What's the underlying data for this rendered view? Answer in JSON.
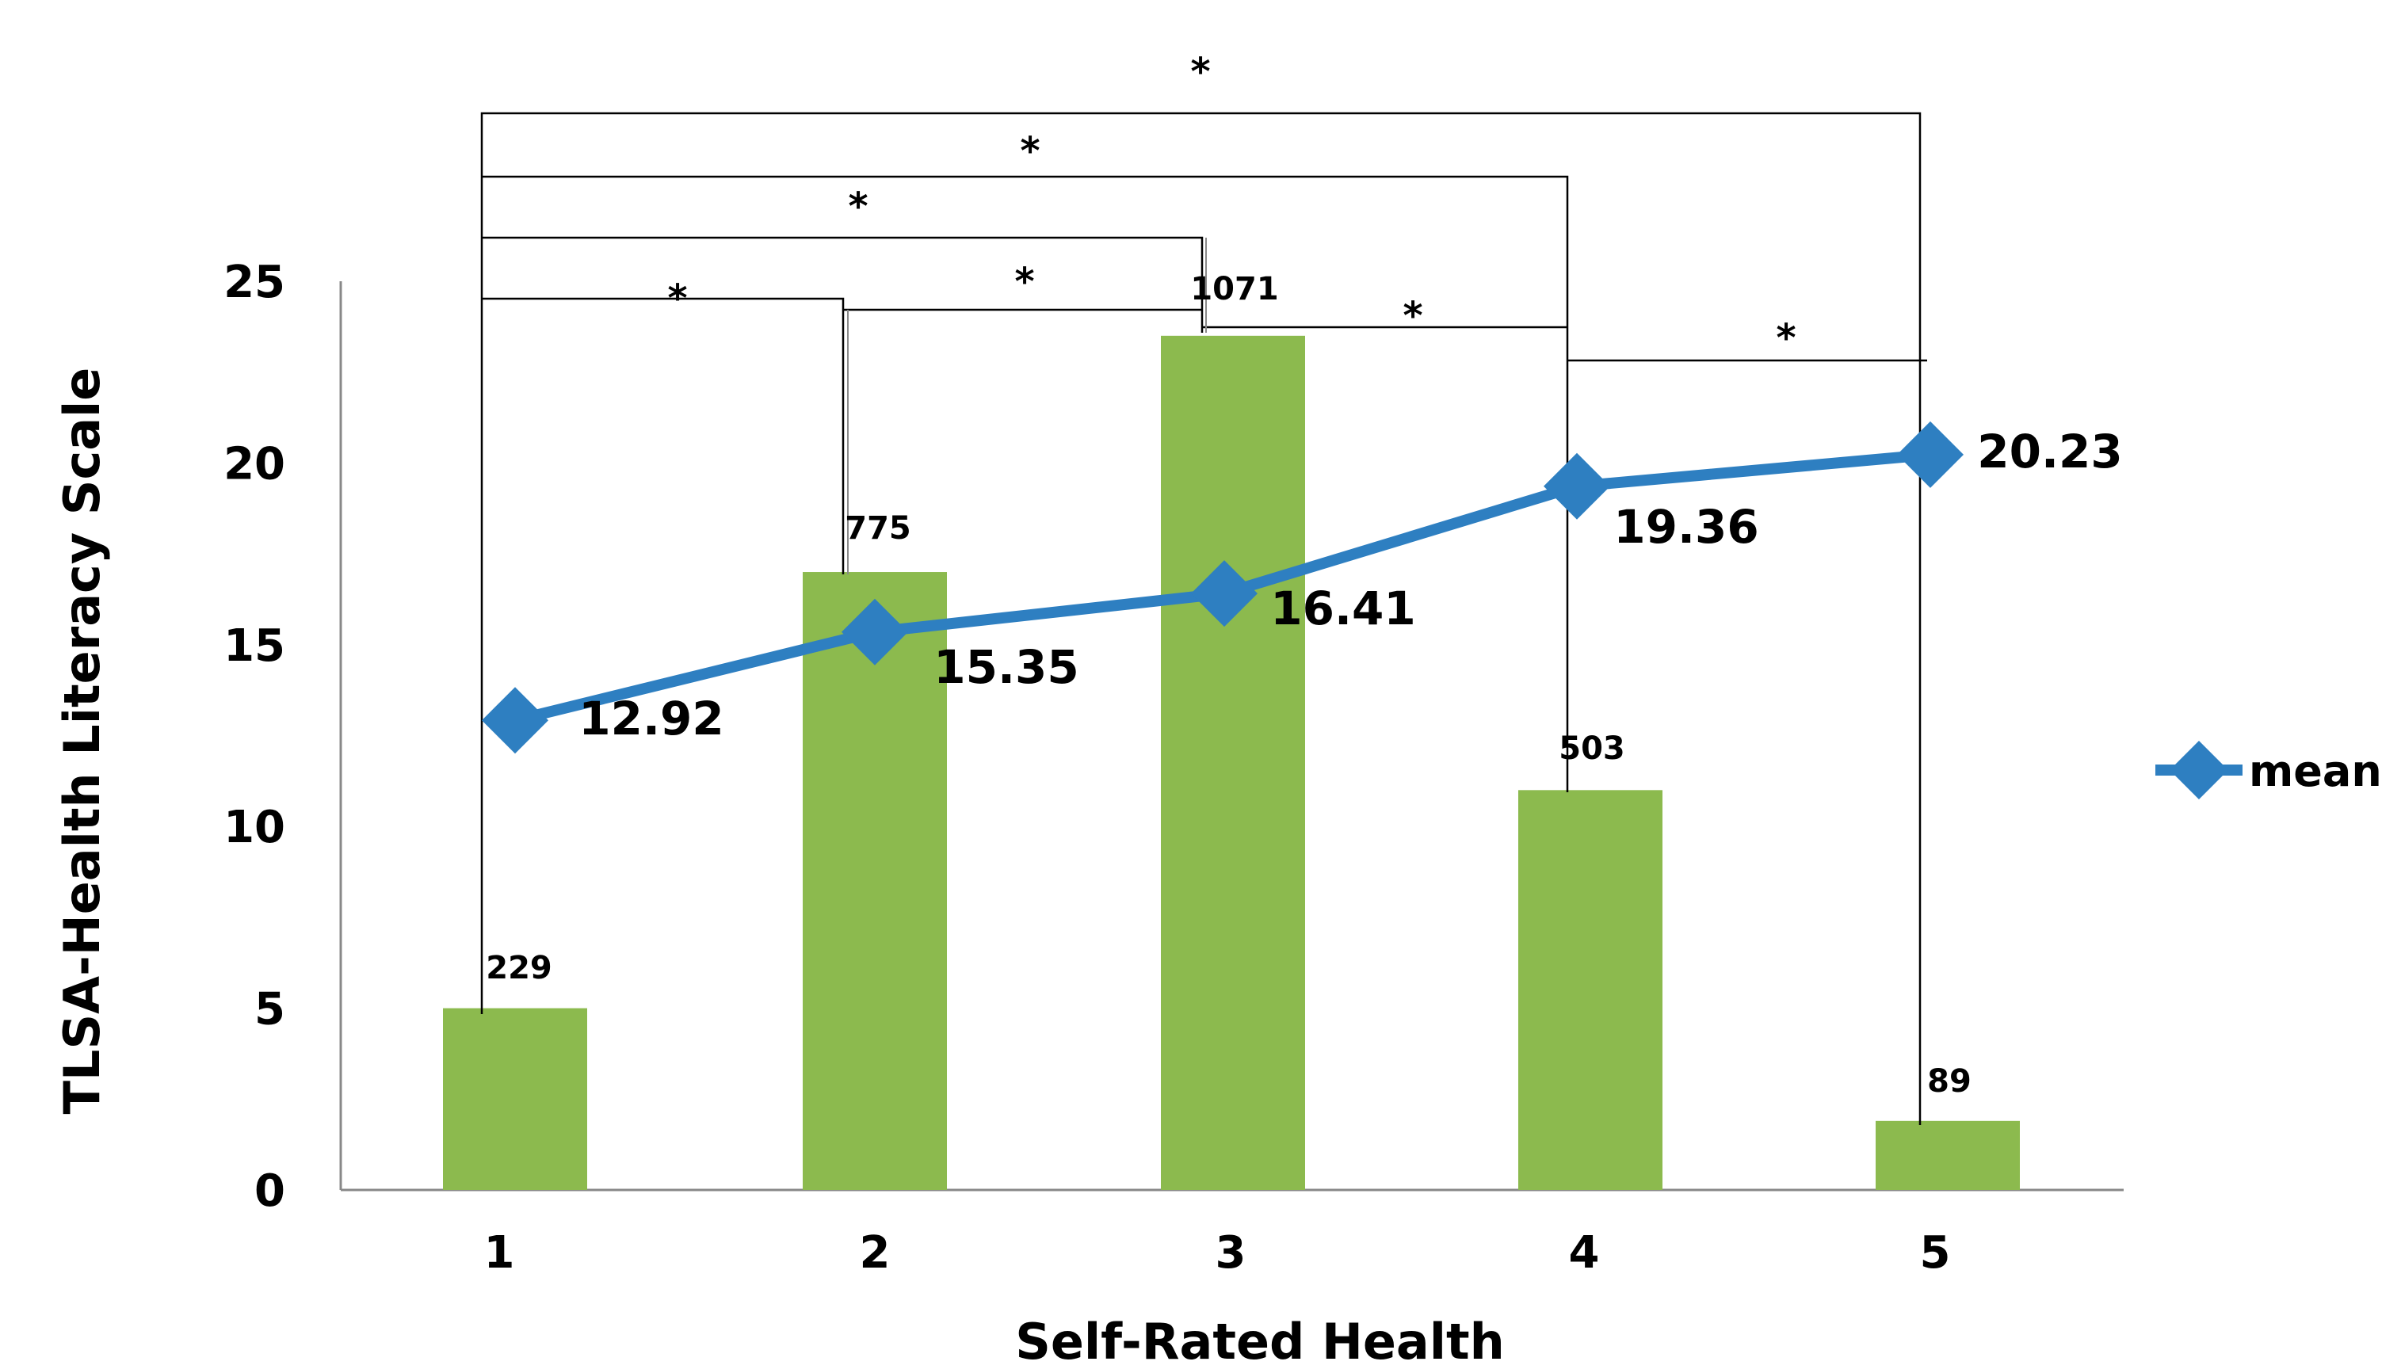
{
  "chart_data": {
    "type": "bar+line",
    "title": "",
    "xlabel": "Self-Rated Health",
    "ylabel": "TLSA-Health Literacy Scale",
    "ylim": [
      0,
      25
    ],
    "yticks": [
      0,
      5,
      10,
      15,
      20,
      25
    ],
    "grid": false,
    "categories": [
      "1",
      "2",
      "3",
      "4",
      "5"
    ],
    "bars": {
      "color": "#8CBA4E",
      "values": [
        5,
        17,
        23.5,
        11,
        1.9
      ],
      "labels": [
        "229",
        "775",
        "1071",
        "503",
        "89"
      ]
    },
    "series": [
      {
        "name": "mean",
        "color": "#2E7FC1",
        "values": [
          12.92,
          15.35,
          16.41,
          19.36,
          20.23
        ],
        "labels": [
          "12.92",
          "15.35",
          "16.41",
          "19.36",
          "20.23"
        ]
      }
    ],
    "legend": {
      "position": "right",
      "entries": [
        "mean"
      ]
    },
    "significance": {
      "symbol": "*",
      "pairs": [
        [
          1,
          5
        ],
        [
          1,
          4
        ],
        [
          1,
          3
        ],
        [
          1,
          2
        ],
        [
          2,
          3
        ],
        [
          3,
          4
        ],
        [
          4,
          5
        ]
      ]
    }
  }
}
